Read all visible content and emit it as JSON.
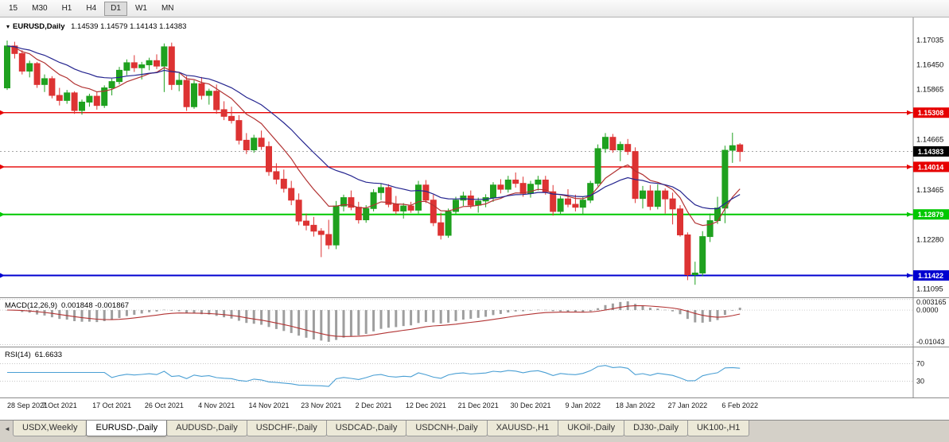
{
  "toolbar": {
    "timeframes": [
      {
        "label": "15",
        "active": false
      },
      {
        "label": "M30",
        "active": false
      },
      {
        "label": "H1",
        "active": false
      },
      {
        "label": "H4",
        "active": false
      },
      {
        "label": "D1",
        "active": true
      },
      {
        "label": "W1",
        "active": false
      },
      {
        "label": "MN",
        "active": false
      }
    ]
  },
  "icons": {
    "symbol_dropdown": "▾",
    "tab_scroll_left": "◄"
  },
  "tabs": {
    "items": [
      {
        "label": "USDX,Weekly",
        "active": false
      },
      {
        "label": "EURUSD-,Daily",
        "active": true
      },
      {
        "label": "AUDUSD-,Daily",
        "active": false
      },
      {
        "label": "USDCHF-,Daily",
        "active": false
      },
      {
        "label": "USDCAD-,Daily",
        "active": false
      },
      {
        "label": "USDCNH-,Daily",
        "active": false
      },
      {
        "label": "XAUUSD-,H1",
        "active": false
      },
      {
        "label": "UKOil-,Daily",
        "active": false
      },
      {
        "label": "DJ30-,Daily",
        "active": false
      },
      {
        "label": "UK100-,H1",
        "active": false
      }
    ]
  },
  "chart_data": {
    "type": "candlestick",
    "symbol_title": "EURUSD,Daily",
    "ohlc_text": "1.14539 1.14579 1.14143 1.14383",
    "open": 1.14539,
    "high": 1.14579,
    "low": 1.14143,
    "close": 1.14383,
    "colors": {
      "up": "#1fa11f",
      "down": "#dd3333",
      "ma_fast": "#b23333",
      "ma_slow": "#24248f",
      "macd_hist": "#9e9e9e",
      "macd_signal": "#b23333",
      "rsi": "#4a9fd4",
      "current_tag_bg": "#000000",
      "axis_text": "#111111",
      "bid_line": "#888888"
    },
    "y_axis": {
      "min": 1.109,
      "max": 1.1758,
      "labels": [
        "1.17035",
        "1.16450",
        "1.15865",
        "1.14665",
        "1.13465",
        "1.12280",
        "1.11095"
      ]
    },
    "hlines": [
      {
        "label": "1.15308",
        "price": 1.15308,
        "color": "#e60000",
        "width": 1.4,
        "text_color": "#ffffff"
      },
      {
        "label": "1.14014",
        "price": 1.14014,
        "color": "#e60000",
        "width": 1.4,
        "text_color": "#ffffff"
      },
      {
        "label": "1.12879",
        "price": 1.12879,
        "color": "#00c800",
        "width": 2,
        "text_color": "#ffffff"
      },
      {
        "label": "1.11422",
        "price": 1.11422,
        "color": "#0000d0",
        "width": 2,
        "text_color": "#ffffff"
      }
    ],
    "current_price": {
      "label": "1.14383",
      "price": 1.14383
    },
    "ma": {
      "fast_period": 10,
      "slow_period": 22
    },
    "x_labels": [
      {
        "index": 0,
        "text": "28 Sep 2021"
      },
      {
        "index": 7,
        "text": "7 Oct 2021"
      },
      {
        "index": 14,
        "text": "17 Oct 2021"
      },
      {
        "index": 21,
        "text": "26 Oct 2021"
      },
      {
        "index": 28,
        "text": "4 Nov 2021"
      },
      {
        "index": 35,
        "text": "14 Nov 2021"
      },
      {
        "index": 42,
        "text": "23 Nov 2021"
      },
      {
        "index": 49,
        "text": "2 Dec 2021"
      },
      {
        "index": 56,
        "text": "12 Dec 2021"
      },
      {
        "index": 63,
        "text": "21 Dec 2021"
      },
      {
        "index": 70,
        "text": "30 Dec 2021"
      },
      {
        "index": 77,
        "text": "9 Jan 2022"
      },
      {
        "index": 84,
        "text": "18 Jan 2022"
      },
      {
        "index": 91,
        "text": "27 Jan 2022"
      },
      {
        "index": 98,
        "text": "6 Feb 2022"
      }
    ],
    "candles": [
      [
        1.159,
        1.1703,
        1.1585,
        1.169
      ],
      [
        1.169,
        1.17,
        1.166,
        1.1672
      ],
      [
        1.1672,
        1.168,
        1.1622,
        1.163
      ],
      [
        1.163,
        1.1655,
        1.1615,
        1.1648
      ],
      [
        1.1648,
        1.1652,
        1.159,
        1.1598
      ],
      [
        1.1598,
        1.1622,
        1.158,
        1.1612
      ],
      [
        1.1612,
        1.1618,
        1.1565,
        1.1572
      ],
      [
        1.1572,
        1.159,
        1.1548,
        1.156
      ],
      [
        1.156,
        1.1585,
        1.1552,
        1.1578
      ],
      [
        1.1578,
        1.1582,
        1.1528,
        1.1536
      ],
      [
        1.1536,
        1.1562,
        1.1526,
        1.1556
      ],
      [
        1.1556,
        1.1576,
        1.1545,
        1.157
      ],
      [
        1.157,
        1.158,
        1.1538,
        1.1548
      ],
      [
        1.1548,
        1.1596,
        1.1542,
        1.159
      ],
      [
        1.159,
        1.1612,
        1.1572,
        1.1605
      ],
      [
        1.1605,
        1.164,
        1.1598,
        1.1632
      ],
      [
        1.1632,
        1.1658,
        1.162,
        1.165
      ],
      [
        1.165,
        1.1668,
        1.1628,
        1.1638
      ],
      [
        1.1638,
        1.1652,
        1.161,
        1.1645
      ],
      [
        1.1645,
        1.1662,
        1.1632,
        1.1655
      ],
      [
        1.1655,
        1.167,
        1.1635,
        1.1642
      ],
      [
        1.1642,
        1.1696,
        1.158,
        1.1688
      ],
      [
        1.1688,
        1.1698,
        1.1585,
        1.1598
      ],
      [
        1.1598,
        1.1625,
        1.1582,
        1.1608
      ],
      [
        1.1608,
        1.1618,
        1.1535,
        1.1545
      ],
      [
        1.1545,
        1.1608,
        1.154,
        1.16
      ],
      [
        1.16,
        1.1616,
        1.1562,
        1.1572
      ],
      [
        1.1572,
        1.1588,
        1.155,
        1.1582
      ],
      [
        1.1582,
        1.1598,
        1.1528,
        1.1538
      ],
      [
        1.1538,
        1.1558,
        1.1513,
        1.1522
      ],
      [
        1.1522,
        1.1545,
        1.1505,
        1.1512
      ],
      [
        1.1512,
        1.1525,
        1.1455,
        1.1465
      ],
      [
        1.1465,
        1.1482,
        1.1432,
        1.1442
      ],
      [
        1.1442,
        1.1478,
        1.1435,
        1.147
      ],
      [
        1.147,
        1.1488,
        1.1442,
        1.145
      ],
      [
        1.145,
        1.1462,
        1.138,
        1.139
      ],
      [
        1.139,
        1.141,
        1.136,
        1.1372
      ],
      [
        1.1372,
        1.1395,
        1.134,
        1.135
      ],
      [
        1.135,
        1.1368,
        1.131,
        1.1322
      ],
      [
        1.1322,
        1.1338,
        1.1262,
        1.1272
      ],
      [
        1.1272,
        1.129,
        1.125,
        1.1262
      ],
      [
        1.1262,
        1.1282,
        1.1235,
        1.1248
      ],
      [
        1.1248,
        1.1255,
        1.1186,
        1.124
      ],
      [
        1.124,
        1.1275,
        1.1205,
        1.1215
      ],
      [
        1.1215,
        1.132,
        1.1205,
        1.1308
      ],
      [
        1.1308,
        1.1335,
        1.1295,
        1.1328
      ],
      [
        1.1328,
        1.1345,
        1.1298,
        1.1305
      ],
      [
        1.1305,
        1.1318,
        1.1266,
        1.1275
      ],
      [
        1.1275,
        1.131,
        1.1268,
        1.1302
      ],
      [
        1.1302,
        1.1348,
        1.1295,
        1.134
      ],
      [
        1.134,
        1.1362,
        1.1322,
        1.1352
      ],
      [
        1.1352,
        1.136,
        1.1305,
        1.1312
      ],
      [
        1.1312,
        1.1332,
        1.1288,
        1.1296
      ],
      [
        1.1296,
        1.1315,
        1.1278,
        1.1308
      ],
      [
        1.1308,
        1.1318,
        1.1292,
        1.1298
      ],
      [
        1.1298,
        1.1368,
        1.129,
        1.1358
      ],
      [
        1.1358,
        1.137,
        1.1315,
        1.1322
      ],
      [
        1.1322,
        1.1335,
        1.126,
        1.1268
      ],
      [
        1.1268,
        1.1292,
        1.1228,
        1.1238
      ],
      [
        1.1238,
        1.1302,
        1.1232,
        1.1295
      ],
      [
        1.1295,
        1.133,
        1.1288,
        1.1322
      ],
      [
        1.1322,
        1.1342,
        1.1308,
        1.1332
      ],
      [
        1.1332,
        1.1345,
        1.1302,
        1.131
      ],
      [
        1.131,
        1.1328,
        1.1292,
        1.132
      ],
      [
        1.132,
        1.1336,
        1.1305,
        1.1328
      ],
      [
        1.1328,
        1.1365,
        1.1318,
        1.1358
      ],
      [
        1.1358,
        1.1372,
        1.1338,
        1.1348
      ],
      [
        1.1348,
        1.138,
        1.134,
        1.137
      ],
      [
        1.137,
        1.1388,
        1.1352,
        1.1362
      ],
      [
        1.1362,
        1.1378,
        1.133,
        1.1338
      ],
      [
        1.1338,
        1.1368,
        1.1328,
        1.136
      ],
      [
        1.136,
        1.138,
        1.1345,
        1.137
      ],
      [
        1.137,
        1.138,
        1.1335,
        1.1342
      ],
      [
        1.1342,
        1.1358,
        1.1285,
        1.1295
      ],
      [
        1.1295,
        1.1332,
        1.1288,
        1.1325
      ],
      [
        1.1325,
        1.1348,
        1.1305,
        1.1312
      ],
      [
        1.1312,
        1.1335,
        1.1295,
        1.1305
      ],
      [
        1.1305,
        1.133,
        1.1288,
        1.1322
      ],
      [
        1.1322,
        1.1368,
        1.1315,
        1.1362
      ],
      [
        1.1362,
        1.1455,
        1.1355,
        1.1445
      ],
      [
        1.1445,
        1.1482,
        1.1435,
        1.1472
      ],
      [
        1.1472,
        1.148,
        1.1435,
        1.1442
      ],
      [
        1.1442,
        1.1462,
        1.1415,
        1.1455
      ],
      [
        1.1455,
        1.1468,
        1.143,
        1.1438
      ],
      [
        1.1438,
        1.1448,
        1.1315,
        1.1326
      ],
      [
        1.1326,
        1.1356,
        1.1302,
        1.1344
      ],
      [
        1.1344,
        1.1358,
        1.1298,
        1.1307
      ],
      [
        1.1307,
        1.136,
        1.13,
        1.1344
      ],
      [
        1.1344,
        1.135,
        1.129,
        1.1325
      ],
      [
        1.1325,
        1.134,
        1.1264,
        1.1301
      ],
      [
        1.1301,
        1.131,
        1.1235,
        1.1239
      ],
      [
        1.1239,
        1.1245,
        1.1131,
        1.1144
      ],
      [
        1.1144,
        1.1175,
        1.112,
        1.1148
      ],
      [
        1.1148,
        1.1248,
        1.114,
        1.1235
      ],
      [
        1.1235,
        1.129,
        1.1222,
        1.1273
      ],
      [
        1.1273,
        1.133,
        1.1265,
        1.1303
      ],
      [
        1.1303,
        1.1452,
        1.1267,
        1.1441
      ],
      [
        1.1441,
        1.1483,
        1.1411,
        1.1452
      ],
      [
        1.1454,
        1.1458,
        1.1414,
        1.1438
      ]
    ],
    "macd": {
      "label": "MACD(12,26,9)",
      "values": "0.001848 -0.001867",
      "fast": 12,
      "slow": 26,
      "signal": 9,
      "scale": {
        "min": -0.011,
        "max": 0.0036
      },
      "axis_labels": [
        {
          "value": 0.003165,
          "text": "0.003165"
        },
        {
          "value": 0.0,
          "text": "0.0000"
        },
        {
          "value": -0.01043,
          "text": "-0.01043"
        }
      ]
    },
    "rsi": {
      "label": "RSI(14)",
      "value": "61.6633",
      "period": 14,
      "levels": [
        {
          "value": 70,
          "text": "70"
        },
        {
          "value": 30,
          "text": "30"
        }
      ]
    }
  }
}
